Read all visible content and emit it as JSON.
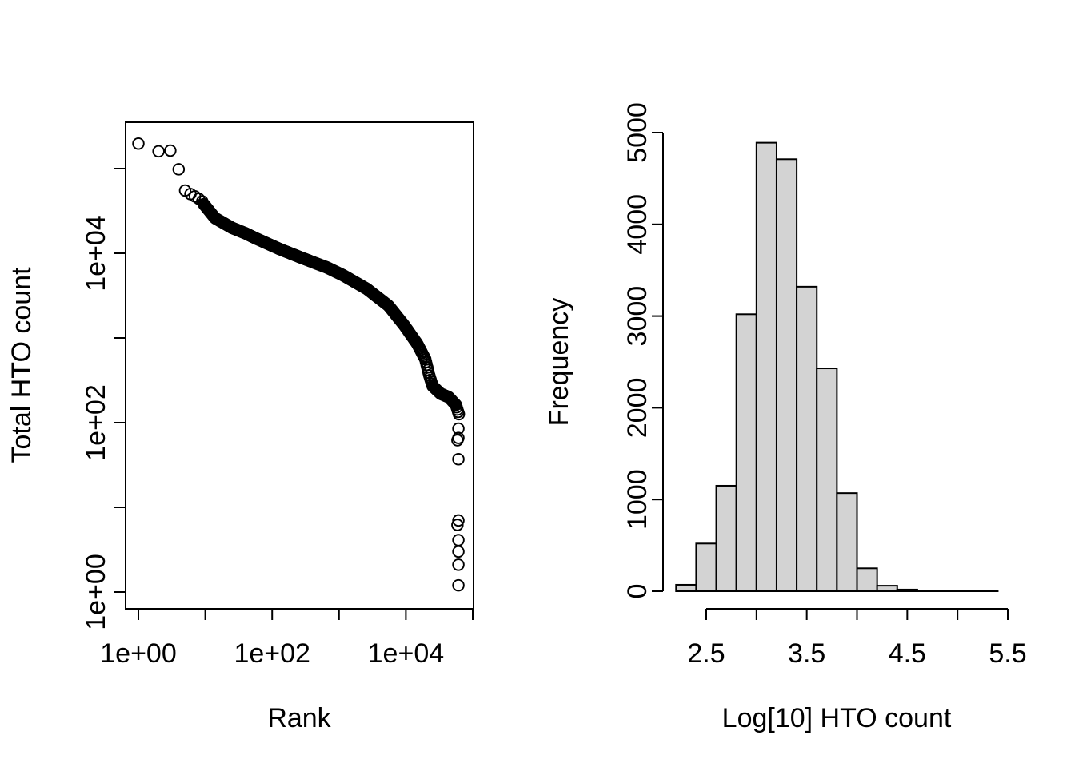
{
  "figure": {
    "background": "#ffffff",
    "foreground": "#000000"
  },
  "chart_data": [
    {
      "id": "knee_plot",
      "type": "scatter",
      "xlabel": "Rank",
      "ylabel": "Total HTO count",
      "x_scale": "log10",
      "y_scale": "log10",
      "xlim": [
        0.65,
        102000
      ],
      "ylim": [
        0.63,
        350000
      ],
      "grid": false,
      "marker": {
        "shape": "open-circle",
        "radius_px": 6.8,
        "stroke_px": 1.9
      },
      "x_ticks": [
        {
          "value": 1,
          "label": "1e+00"
        },
        {
          "value": 10,
          "label": ""
        },
        {
          "value": 100,
          "label": "1e+02"
        },
        {
          "value": 1000,
          "label": ""
        },
        {
          "value": 10000,
          "label": "1e+04"
        },
        {
          "value": 100000,
          "label": ""
        }
      ],
      "y_ticks": [
        {
          "value": 1,
          "label": "1e+00"
        },
        {
          "value": 10,
          "label": ""
        },
        {
          "value": 100,
          "label": "1e+02"
        },
        {
          "value": 1000,
          "label": ""
        },
        {
          "value": 10000,
          "label": "1e+04"
        },
        {
          "value": 100000,
          "label": ""
        }
      ],
      "top_points": [
        [
          1,
          197000
        ],
        [
          2,
          160000
        ],
        [
          3,
          163000
        ],
        [
          4,
          98000
        ],
        [
          5,
          55000
        ],
        [
          6,
          50000
        ],
        [
          7,
          47000
        ],
        [
          8,
          44000
        ],
        [
          9,
          41000
        ]
      ],
      "band_control_points": [
        [
          9.5,
          38000
        ],
        [
          14,
          26000
        ],
        [
          25,
          20000
        ],
        [
          40,
          17200
        ],
        [
          56,
          15100
        ],
        [
          130,
          11200
        ],
        [
          290,
          8700
        ],
        [
          660,
          6800
        ],
        [
          1150,
          5500
        ],
        [
          2600,
          3800
        ],
        [
          5500,
          2400
        ],
        [
          9500,
          1400
        ],
        [
          14800,
          850
        ],
        [
          19500,
          560
        ],
        [
          22400,
          360
        ],
        [
          25100,
          270
        ],
        [
          33000,
          220
        ],
        [
          43700,
          200
        ],
        [
          56000,
          162
        ],
        [
          62000,
          126
        ]
      ],
      "outlier_points": [
        [
          61000,
          85
        ],
        [
          61000,
          66
        ],
        [
          59000,
          62
        ],
        [
          61000,
          37
        ],
        [
          61000,
          7
        ],
        [
          59000,
          6.2
        ],
        [
          61000,
          4.1
        ],
        [
          61000,
          3
        ],
        [
          61000,
          2.1
        ],
        [
          61000,
          1.2
        ]
      ]
    },
    {
      "id": "hto_histogram",
      "type": "histogram",
      "xlabel": "Log[10] HTO count",
      "ylabel": "Frequency",
      "bin_start": 2.2,
      "bin_width": 0.2,
      "counts": [
        70,
        520,
        1150,
        3020,
        4890,
        4710,
        3320,
        2430,
        1070,
        250,
        60,
        18,
        8,
        4,
        2,
        2
      ],
      "ylim": [
        0,
        5000
      ],
      "bar_fill": "#d3d3d3",
      "bar_stroke": "#000000",
      "x_ticks": [
        {
          "value": 2.5,
          "label": "2.5"
        },
        {
          "value": 3.0,
          "label": ""
        },
        {
          "value": 3.5,
          "label": "3.5"
        },
        {
          "value": 4.0,
          "label": ""
        },
        {
          "value": 4.5,
          "label": "4.5"
        },
        {
          "value": 5.0,
          "label": ""
        },
        {
          "value": 5.5,
          "label": "5.5"
        }
      ],
      "y_ticks": [
        {
          "value": 0,
          "label": "0"
        },
        {
          "value": 1000,
          "label": "1000"
        },
        {
          "value": 2000,
          "label": "2000"
        },
        {
          "value": 3000,
          "label": "3000"
        },
        {
          "value": 4000,
          "label": "4000"
        },
        {
          "value": 5000,
          "label": "5000"
        }
      ]
    }
  ]
}
